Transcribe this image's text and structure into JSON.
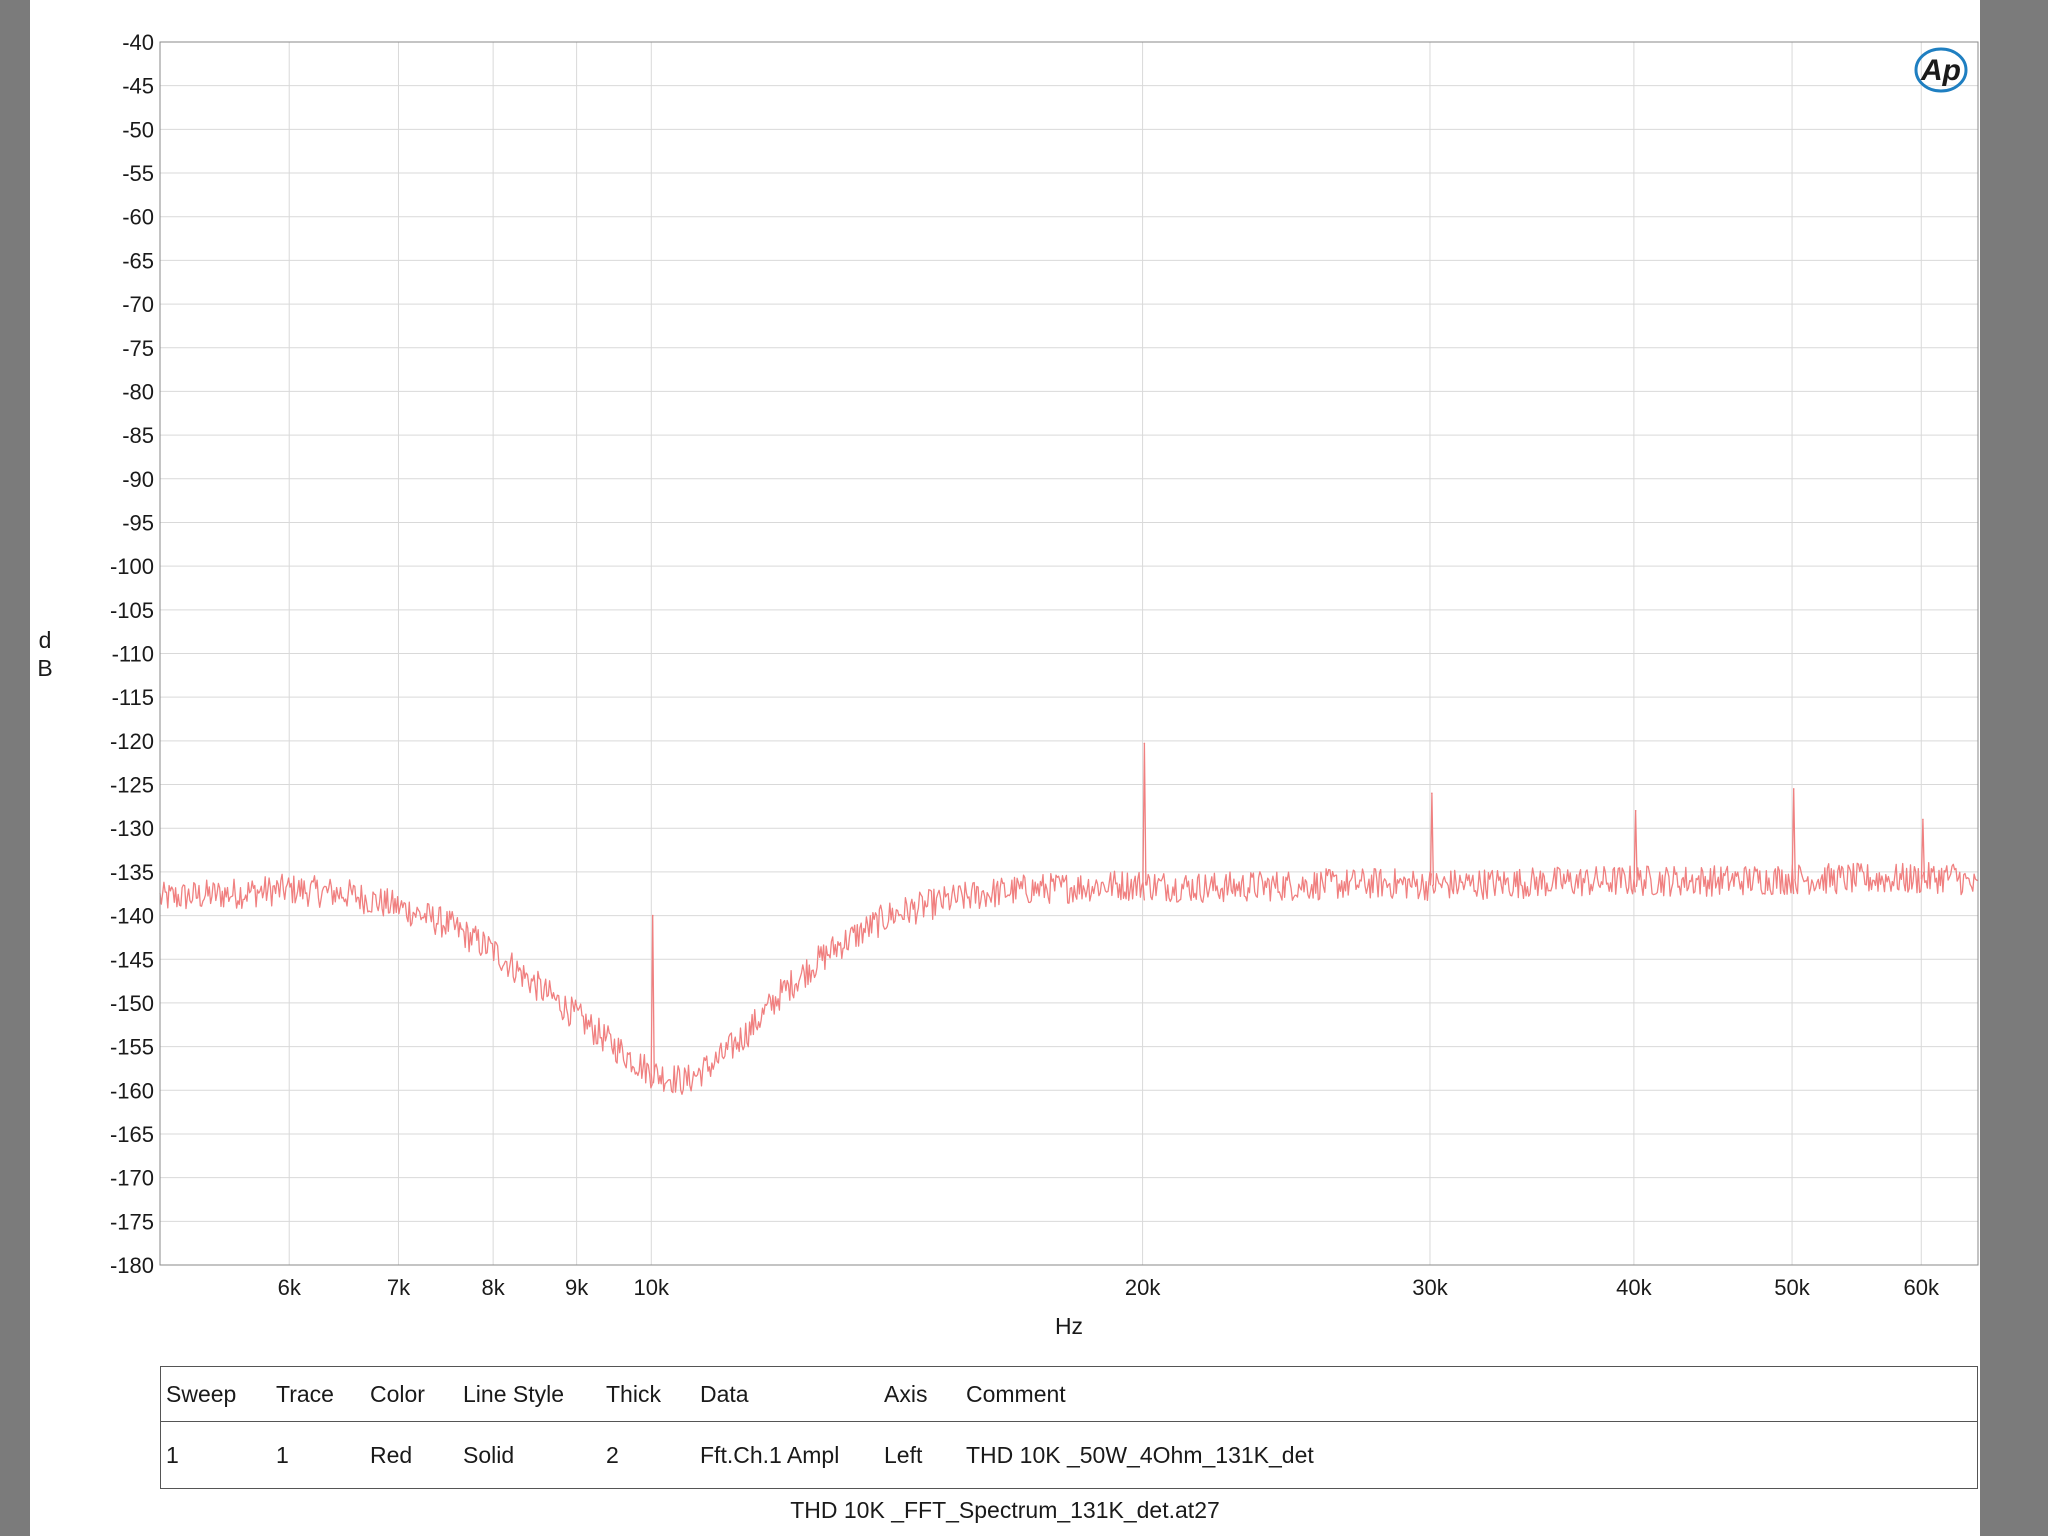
{
  "chart_data": {
    "type": "line",
    "xlabel": "Hz",
    "ylabel": "dB",
    "x_scale": "log",
    "xlim": [
      5000,
      65000
    ],
    "ylim": [
      -180,
      -40
    ],
    "y_ticks": [
      -40,
      -45,
      -50,
      -55,
      -60,
      -65,
      -70,
      -75,
      -80,
      -85,
      -90,
      -95,
      -100,
      -105,
      -110,
      -115,
      -120,
      -125,
      -130,
      -135,
      -140,
      -145,
      -150,
      -155,
      -160,
      -165,
      -170,
      -175,
      -180
    ],
    "x_ticks": [
      {
        "value": 6000,
        "label": "6k"
      },
      {
        "value": 7000,
        "label": "7k"
      },
      {
        "value": 8000,
        "label": "8k"
      },
      {
        "value": 9000,
        "label": "9k"
      },
      {
        "value": 10000,
        "label": "10k"
      },
      {
        "value": 20000,
        "label": "20k"
      },
      {
        "value": 30000,
        "label": "30k"
      },
      {
        "value": 40000,
        "label": "40k"
      },
      {
        "value": 50000,
        "label": "50k"
      },
      {
        "value": 60000,
        "label": "60k"
      }
    ],
    "grid": true,
    "series": [
      {
        "color": "#f08080",
        "x": [
          5000,
          5500,
          6000,
          6500,
          7000,
          7500,
          8000,
          8500,
          9000,
          9500,
          10000,
          10500,
          11000,
          11500,
          12000,
          12500,
          13000,
          14000,
          15000,
          16000,
          17000,
          18000,
          19000,
          20000,
          22000,
          25000,
          28000,
          30000,
          35000,
          40000,
          45000,
          50000,
          55000,
          60000,
          63000,
          65000
        ],
        "y": [
          -138,
          -137.5,
          -137,
          -137.5,
          -139,
          -141,
          -144,
          -148,
          -151.5,
          -155,
          -158,
          -159,
          -156.5,
          -153,
          -149,
          -146,
          -143.5,
          -140,
          -138.5,
          -137.5,
          -137,
          -136.8,
          -136.5,
          -136.5,
          -136.8,
          -136.5,
          -136.3,
          -136.5,
          -136.2,
          -136,
          -136,
          -135.8,
          -135.8,
          -135.8,
          -135.5,
          -137
        ],
        "peaks": [
          {
            "x": 10020,
            "y": -140
          },
          {
            "x": 20050,
            "y": -120.3
          },
          {
            "x": 30080,
            "y": -126
          },
          {
            "x": 40100,
            "y": -128
          },
          {
            "x": 50120,
            "y": -125.5
          },
          {
            "x": 60140,
            "y": -129
          }
        ]
      }
    ]
  },
  "legend_table": {
    "headers": [
      "Sweep",
      "Trace",
      "Color",
      "Line Style",
      "Thick",
      "Data",
      "Axis",
      "Comment"
    ],
    "rows": [
      [
        "1",
        "1",
        "Red",
        "Solid",
        "2",
        "Fft.Ch.1 Ampl",
        "Left",
        "THD 10K _50W_4Ohm_131K_det"
      ]
    ]
  },
  "footer": {
    "filename": "THD  10K _FFT_Spectrum_131K_det.at27"
  },
  "logo": {
    "text": "Ap",
    "color": "#1f7fc1"
  }
}
